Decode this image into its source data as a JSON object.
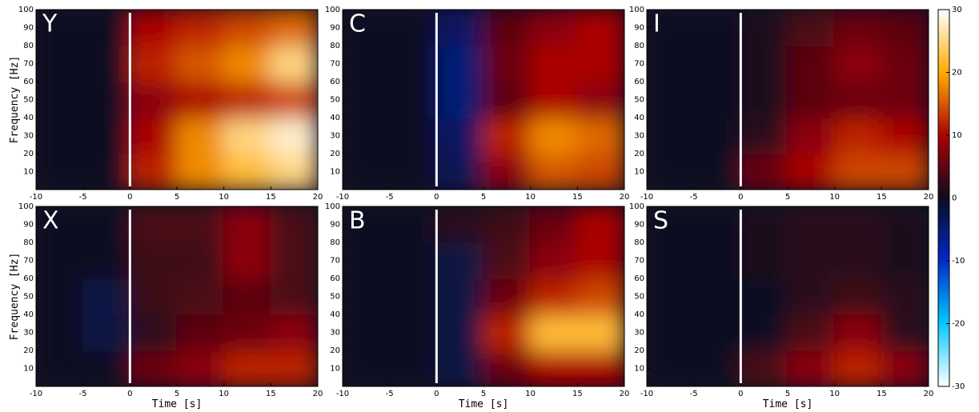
{
  "chart_data": [
    {
      "type": "heatmap",
      "label": "Y",
      "ylabel": "Frequency [Hz]",
      "xlim": [
        -10,
        20
      ],
      "ylim": [
        0,
        100
      ],
      "xticks": [
        -10,
        -5,
        0,
        5,
        10,
        15,
        20
      ],
      "yticks": [
        10,
        20,
        30,
        40,
        50,
        60,
        70,
        80,
        90,
        100
      ],
      "event_time": 0,
      "x_edges": [
        -10,
        -5,
        0,
        5,
        10,
        15,
        20
      ],
      "y_edges": [
        0,
        20,
        40,
        60,
        80,
        100
      ],
      "z": [
        [
          0,
          0,
          12,
          18,
          22,
          25
        ],
        [
          0,
          0,
          10,
          18,
          25,
          28
        ],
        [
          0,
          0,
          8,
          10,
          12,
          14
        ],
        [
          0,
          0,
          12,
          15,
          18,
          25
        ],
        [
          0,
          0,
          10,
          12,
          14,
          16
        ]
      ]
    },
    {
      "type": "heatmap",
      "label": "C",
      "xlim": [
        -10,
        20
      ],
      "ylim": [
        0,
        100
      ],
      "xticks": [
        -10,
        -5,
        0,
        5,
        10,
        15,
        20
      ],
      "yticks": [
        10,
        20,
        30,
        40,
        50,
        60,
        70,
        80,
        90,
        100
      ],
      "event_time": 0,
      "x_edges": [
        -10,
        -5,
        0,
        5,
        10,
        15,
        20
      ],
      "y_edges": [
        0,
        20,
        40,
        60,
        80,
        100
      ],
      "z": [
        [
          0,
          0,
          -3,
          8,
          15,
          14
        ],
        [
          0,
          0,
          -4,
          12,
          18,
          16
        ],
        [
          0,
          0,
          -5,
          5,
          10,
          8
        ],
        [
          0,
          0,
          -5,
          6,
          10,
          10
        ],
        [
          0,
          0,
          -4,
          5,
          8,
          10
        ]
      ]
    },
    {
      "type": "heatmap",
      "label": "I",
      "xlim": [
        -10,
        20
      ],
      "ylim": [
        0,
        100
      ],
      "xticks": [
        -10,
        -5,
        0,
        5,
        10,
        15,
        20
      ],
      "yticks": [
        10,
        20,
        30,
        40,
        50,
        60,
        70,
        80,
        90,
        100
      ],
      "event_time": 0,
      "x_edges": [
        -10,
        -5,
        0,
        5,
        10,
        15,
        20
      ],
      "y_edges": [
        0,
        20,
        40,
        60,
        80,
        100
      ],
      "z": [
        [
          0,
          0,
          6,
          10,
          14,
          14
        ],
        [
          0,
          0,
          2,
          8,
          12,
          10
        ],
        [
          0,
          0,
          1,
          5,
          6,
          6
        ],
        [
          0,
          0,
          1,
          5,
          8,
          6
        ],
        [
          0,
          0,
          1,
          4,
          6,
          5
        ]
      ]
    },
    {
      "type": "heatmap",
      "label": "X",
      "ylabel": "Frequency [Hz]",
      "xlabel": "Time [s]",
      "xlim": [
        -10,
        20
      ],
      "ylim": [
        0,
        100
      ],
      "xticks": [
        -10,
        -5,
        0,
        5,
        10,
        15,
        20
      ],
      "yticks": [
        10,
        20,
        30,
        40,
        50,
        60,
        70,
        80,
        90,
        100
      ],
      "event_time": 0,
      "x_edges": [
        -10,
        -5,
        0,
        5,
        10,
        15,
        20
      ],
      "y_edges": [
        0,
        20,
        40,
        60,
        80,
        100
      ],
      "z": [
        [
          0,
          0,
          6,
          8,
          12,
          12
        ],
        [
          0,
          -2,
          2,
          5,
          6,
          8
        ],
        [
          0,
          -2,
          3,
          4,
          5,
          4
        ],
        [
          0,
          0,
          3,
          3,
          8,
          4
        ],
        [
          0,
          0,
          4,
          4,
          8,
          4
        ]
      ]
    },
    {
      "type": "heatmap",
      "label": "B",
      "xlabel": "Time [s]",
      "xlim": [
        -10,
        20
      ],
      "ylim": [
        0,
        100
      ],
      "xticks": [
        -10,
        -5,
        0,
        5,
        10,
        15,
        20
      ],
      "yticks": [
        10,
        20,
        30,
        40,
        50,
        60,
        70,
        80,
        90,
        100
      ],
      "event_time": 0,
      "x_edges": [
        -10,
        -5,
        0,
        5,
        10,
        15,
        20
      ],
      "y_edges": [
        0,
        20,
        40,
        60,
        80,
        100
      ],
      "z": [
        [
          0,
          0,
          -2,
          6,
          10,
          10
        ],
        [
          0,
          0,
          -2,
          12,
          22,
          22
        ],
        [
          0,
          0,
          -2,
          6,
          12,
          14
        ],
        [
          0,
          0,
          -2,
          4,
          8,
          10
        ],
        [
          0,
          0,
          2,
          3,
          6,
          10
        ]
      ]
    },
    {
      "type": "heatmap",
      "label": "S",
      "xlabel": "Time [s]",
      "xlim": [
        -10,
        20
      ],
      "ylim": [
        0,
        100
      ],
      "xticks": [
        -10,
        -5,
        0,
        5,
        10,
        15,
        20
      ],
      "yticks": [
        10,
        20,
        30,
        40,
        50,
        60,
        70,
        80,
        90,
        100
      ],
      "event_time": 0,
      "x_edges": [
        -10,
        -5,
        0,
        5,
        10,
        15,
        20
      ],
      "y_edges": [
        0,
        20,
        40,
        60,
        80,
        100
      ],
      "z": [
        [
          0,
          0,
          4,
          8,
          12,
          8
        ],
        [
          0,
          0,
          0,
          4,
          8,
          2
        ],
        [
          0,
          0,
          0,
          2,
          3,
          2
        ],
        [
          0,
          0,
          1,
          2,
          2,
          1
        ],
        [
          0,
          0,
          1,
          2,
          2,
          1
        ]
      ]
    },
    {
      "type": "colorbar",
      "ylim": [
        -30,
        30
      ],
      "yticks": [
        -30,
        -20,
        -10,
        0,
        10,
        20,
        30
      ]
    }
  ]
}
